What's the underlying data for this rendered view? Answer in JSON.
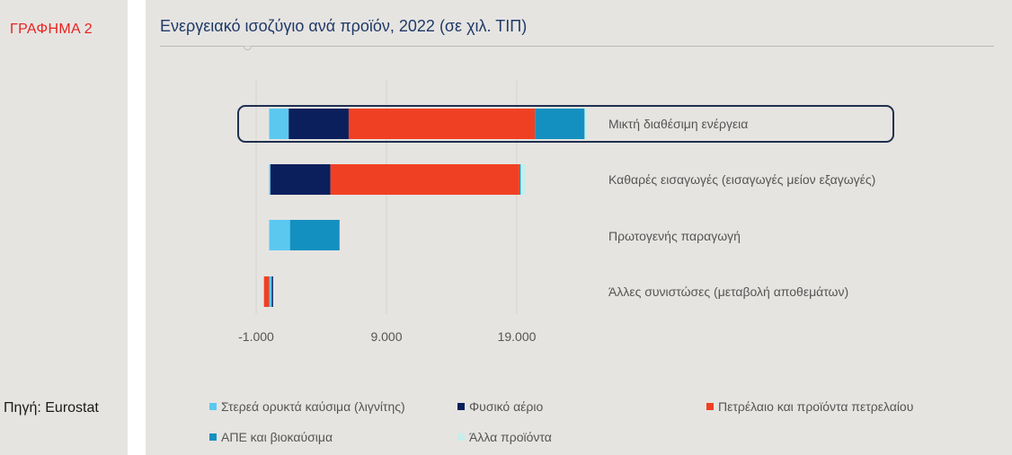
{
  "sidebar": {
    "chart_label": "ΓΡΑΦΗΜΑ 2",
    "source": "Πηγή: Eurostat"
  },
  "colors": {
    "panel_bg": "#e6e4e1",
    "title": "#1f3a68",
    "chart_label": "#e8231f",
    "highlight_box": "#1f3050"
  },
  "chart_data": {
    "type": "bar",
    "orientation": "horizontal",
    "stacked": true,
    "title": "Ενεργειακό ισοζύγιο ανά προϊόν, 2022 (σε χιλ. ΤΙΠ)",
    "categories": [
      "Μικτή διαθέσιμη ενέργεια",
      "Καθαρές εισαγωγές (εισαγωγές μείον εξαγωγές)",
      "Πρωτογενής παραγωγή",
      "Άλλες συνιστώσες (μεταβολή αποθεμάτων)"
    ],
    "highlighted_category": "Μικτή διαθέσιμη ενέργεια",
    "series": [
      {
        "name": "Στερεά ορυκτά καύσιμα (λιγνίτης)",
        "color": "#5bc8f0",
        "values": [
          1500,
          100,
          1600,
          200
        ]
      },
      {
        "name": "Φυσικό αέριο",
        "color": "#0a1f5c",
        "values": [
          4600,
          4600,
          0,
          100
        ]
      },
      {
        "name": "Πετρέλαιο και προϊόντα πετρελαίου",
        "color": "#f04023",
        "values": [
          14300,
          14500,
          0,
          -400
        ]
      },
      {
        "name": "ΑΠΕ και βιοκαύσιμα",
        "color": "#1490c0",
        "values": [
          3800,
          100,
          3800,
          0
        ]
      },
      {
        "name": "Άλλα προϊόντα",
        "color": "#c6eeea",
        "values": [
          200,
          400,
          0,
          0
        ]
      }
    ],
    "xlim": [
      -1000,
      23000
    ],
    "xticks": [
      -1000,
      9000,
      19000
    ],
    "xtick_labels": [
      "-1.000",
      "9.000",
      "19.000"
    ],
    "grid": true,
    "legend_position": "bottom"
  }
}
